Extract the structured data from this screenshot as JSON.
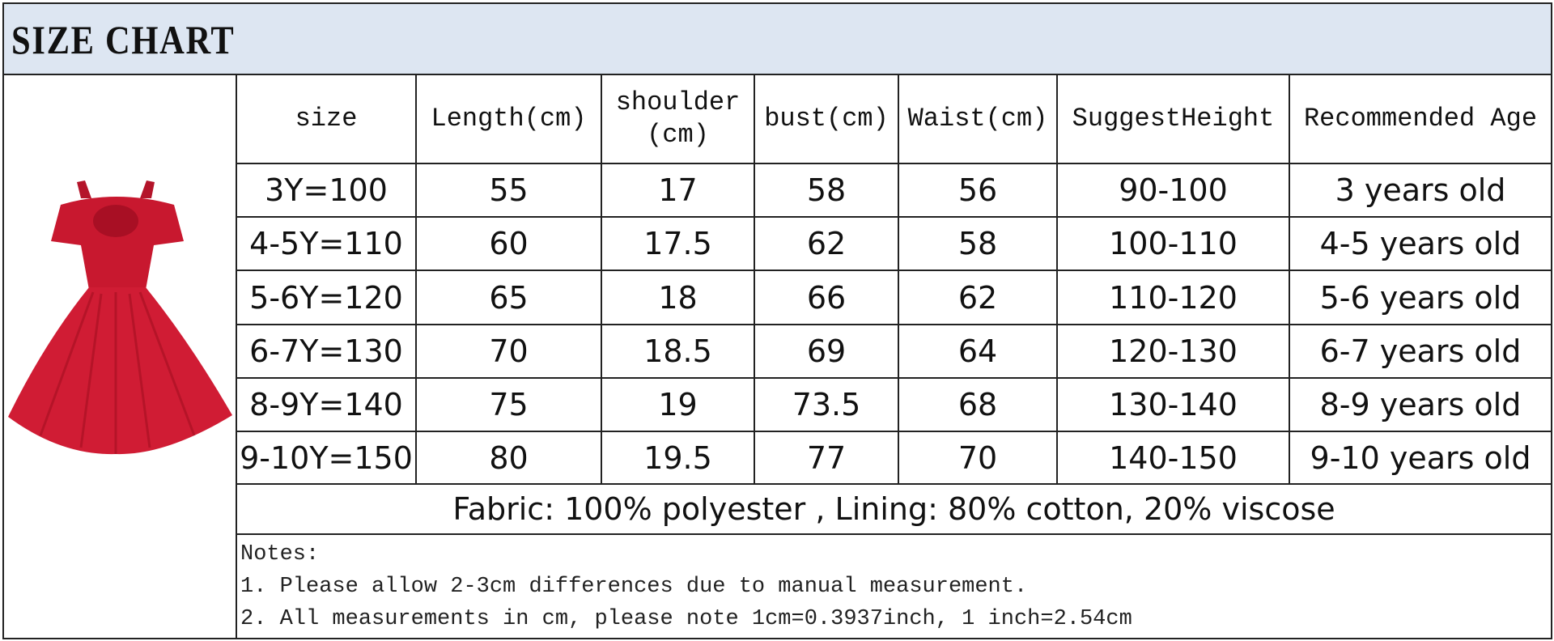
{
  "header": {
    "title": "SIZE CHART"
  },
  "table": {
    "headers": [
      "size",
      "Length(cm)",
      "shoulder\n(cm)",
      "bust(cm)",
      "Waist(cm)",
      "SuggestHeight",
      "Recommended Age"
    ],
    "rows": [
      [
        "3Y=100",
        "55",
        "17",
        "58",
        "56",
        "90-100",
        "3 years old"
      ],
      [
        "4-5Y=110",
        "60",
        "17.5",
        "62",
        "58",
        "100-110",
        "4-5 years old"
      ],
      [
        "5-6Y=120",
        "65",
        "18",
        "66",
        "62",
        "110-120",
        "5-6 years old"
      ],
      [
        "6-7Y=130",
        "70",
        "18.5",
        "69",
        "64",
        "120-130",
        "6-7 years old"
      ],
      [
        "8-9Y=140",
        "75",
        "19",
        "73.5",
        "68",
        "130-140",
        "8-9 years old"
      ],
      [
        "9-10Y=150",
        "80",
        "19.5",
        "77",
        "70",
        "140-150",
        "9-10 years old"
      ]
    ]
  },
  "fabric": "Fabric: 100% polyester , Lining: 80% cotton, 20% viscose",
  "notes": {
    "title": "Notes:",
    "lines": [
      "1. Please allow 2-3cm differences due to manual measurement.",
      "2. All measurements in cm, please note 1cm=0.3937inch, 1 inch=2.54cm"
    ]
  }
}
